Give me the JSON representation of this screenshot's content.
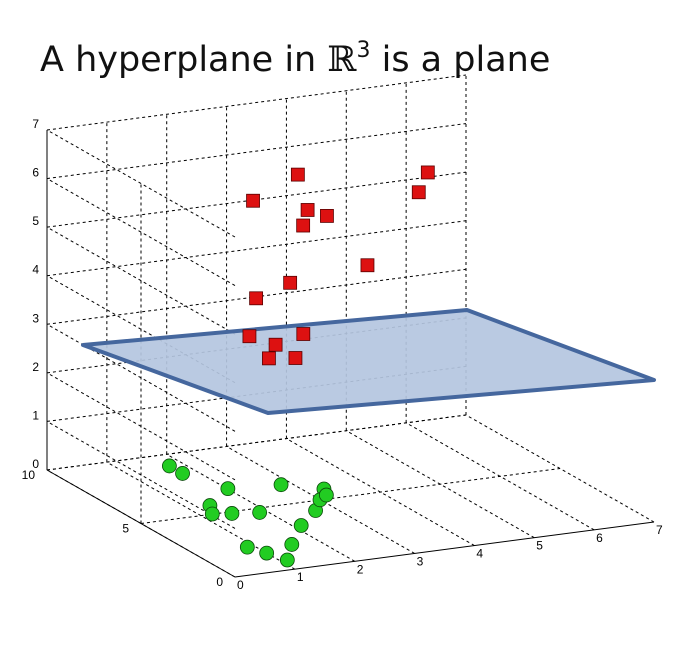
{
  "title": {
    "prefix": "A hyperplane in ",
    "symbol": "ℝ",
    "exponent": "3",
    "suffix": " is a plane"
  },
  "chart_data": {
    "type": "scatter",
    "projection": "3d",
    "title": "A hyperplane in ℝ³ is a plane",
    "xlabel": "",
    "ylabel": "",
    "zlabel": "",
    "xlim": [
      0,
      7
    ],
    "ylim": [
      0,
      10
    ],
    "zlim": [
      0,
      7
    ],
    "x_ticks": [
      "0",
      "1",
      "2",
      "3",
      "4",
      "5",
      "6",
      "7"
    ],
    "y_ticks": [
      "0",
      "5",
      "10"
    ],
    "z_ticks": [
      "0",
      "1",
      "2",
      "3",
      "4",
      "5",
      "6",
      "7"
    ],
    "grid": true,
    "series": [
      {
        "marker": "square",
        "color": "#dd1111",
        "points": [
          [
            2.5,
            7.0,
            5.8
          ],
          [
            3.5,
            7.8,
            6.0
          ],
          [
            3.6,
            7.6,
            5.3
          ],
          [
            3.4,
            7.2,
            5.1
          ],
          [
            4.3,
            8.8,
            4.8
          ],
          [
            4.6,
            7.6,
            4.0
          ],
          [
            5.3,
            7.1,
            5.5
          ],
          [
            5.2,
            6.3,
            6.1
          ],
          [
            2.3,
            6.2,
            4.0
          ],
          [
            2.9,
            6.3,
            4.2
          ],
          [
            2.0,
            5.6,
            3.4
          ],
          [
            2.5,
            5.8,
            3.1
          ],
          [
            2.9,
            5.6,
            3.3
          ],
          [
            2.2,
            5.2,
            3.0
          ],
          [
            2.8,
            5.7,
            2.8
          ]
        ]
      },
      {
        "marker": "circle",
        "color": "#22cc22",
        "points": [
          [
            1.9,
            3.6,
            0.8
          ],
          [
            1.8,
            1.0,
            1.3
          ],
          [
            2.1,
            2.4,
            0.5
          ],
          [
            2.3,
            2.8,
            0.6
          ],
          [
            2.5,
            3.1,
            0.6
          ],
          [
            1.2,
            0.8,
            0.3
          ],
          [
            1.0,
            1.5,
            0.0
          ],
          [
            0.6,
            5.4,
            1.0
          ],
          [
            0.6,
            4.7,
            1.0
          ],
          [
            0.9,
            4.2,
            0.4
          ],
          [
            0.5,
            2.8,
            0.6
          ],
          [
            1.2,
            0.3,
            0.8
          ],
          [
            0.6,
            0.6,
            1.1
          ],
          [
            0.3,
            0.3,
            0.5
          ],
          [
            0.2,
            0.8,
            1.1
          ],
          [
            1.0,
            0.4,
            0.1
          ],
          [
            1.2,
            4.2,
            0.7
          ]
        ]
      }
    ],
    "plane": {
      "z": 2.5,
      "color": "#b4c6e0",
      "edge_color": "#45679e"
    }
  }
}
